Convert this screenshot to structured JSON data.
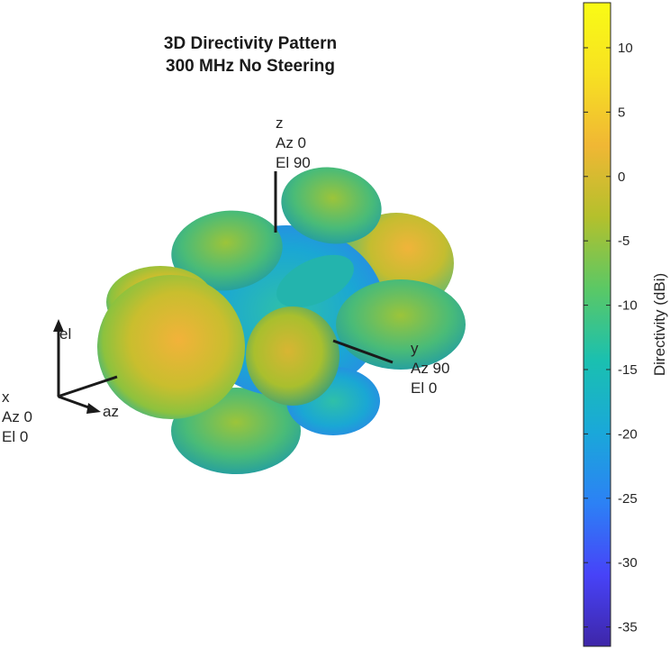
{
  "chart_data": {
    "type": "3d-surface",
    "title": [
      "3D Directivity Pattern",
      "300 MHz No Steering"
    ],
    "axes": {
      "x": [
        "x",
        "Az 0",
        "El 0"
      ],
      "y": [
        "y",
        "Az 90",
        "El 0"
      ],
      "z": [
        "z",
        "Az 0",
        "El 90"
      ],
      "az_label": "az",
      "el_label": "el"
    },
    "colorbar": {
      "label": "Directivity (dBi)",
      "range": [
        -36.5,
        13.5
      ],
      "ticks": [
        10,
        5,
        0,
        -5,
        -10,
        -15,
        -20,
        -25,
        -30,
        -35
      ],
      "colormap": "parula"
    }
  },
  "colors": {
    "parula": [
      "#3e26a8",
      "#4743f8",
      "#2c81f5",
      "#1aa8d9",
      "#1ac0b0",
      "#5bc865",
      "#b4c02c",
      "#f0b734",
      "#f7e122",
      "#f9fb15"
    ]
  }
}
